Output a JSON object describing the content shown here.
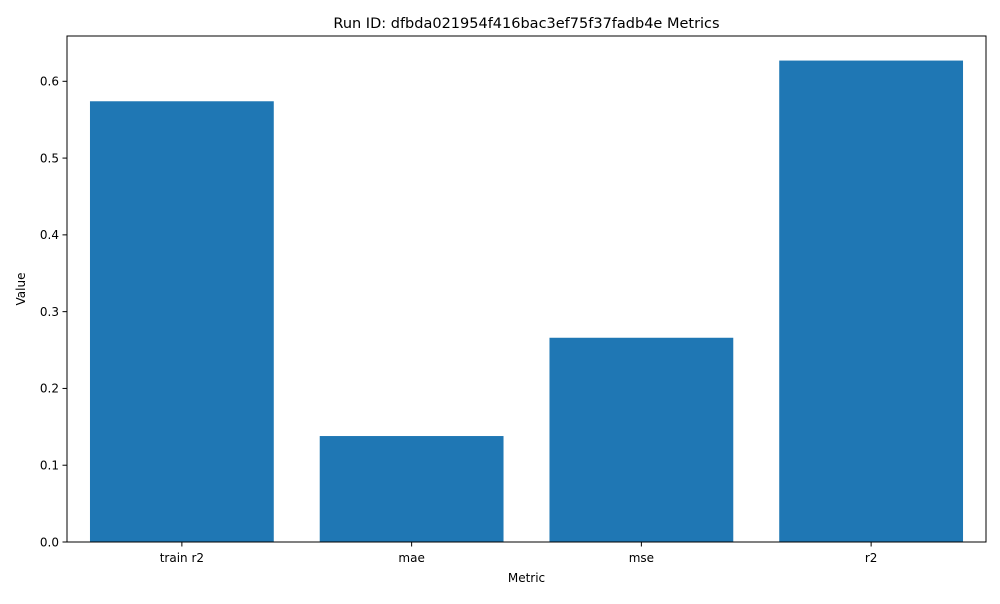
{
  "chart_data": {
    "type": "bar",
    "title": "Run ID: dfbda021954f416bac3ef75f37fadb4e Metrics",
    "xlabel": "Metric",
    "ylabel": "Value",
    "categories": [
      "train r2",
      "mae",
      "mse",
      "r2"
    ],
    "values": [
      0.574,
      0.138,
      0.266,
      0.627
    ],
    "ylim": [
      0,
      0.659
    ],
    "yticks": [
      0.0,
      0.1,
      0.2,
      0.3,
      0.4,
      0.5,
      0.6
    ],
    "ytick_labels": [
      "0.0",
      "0.1",
      "0.2",
      "0.3",
      "0.4",
      "0.5",
      "0.6"
    ],
    "bar_color": "#1f77b4",
    "grid": false,
    "legend": "none"
  }
}
